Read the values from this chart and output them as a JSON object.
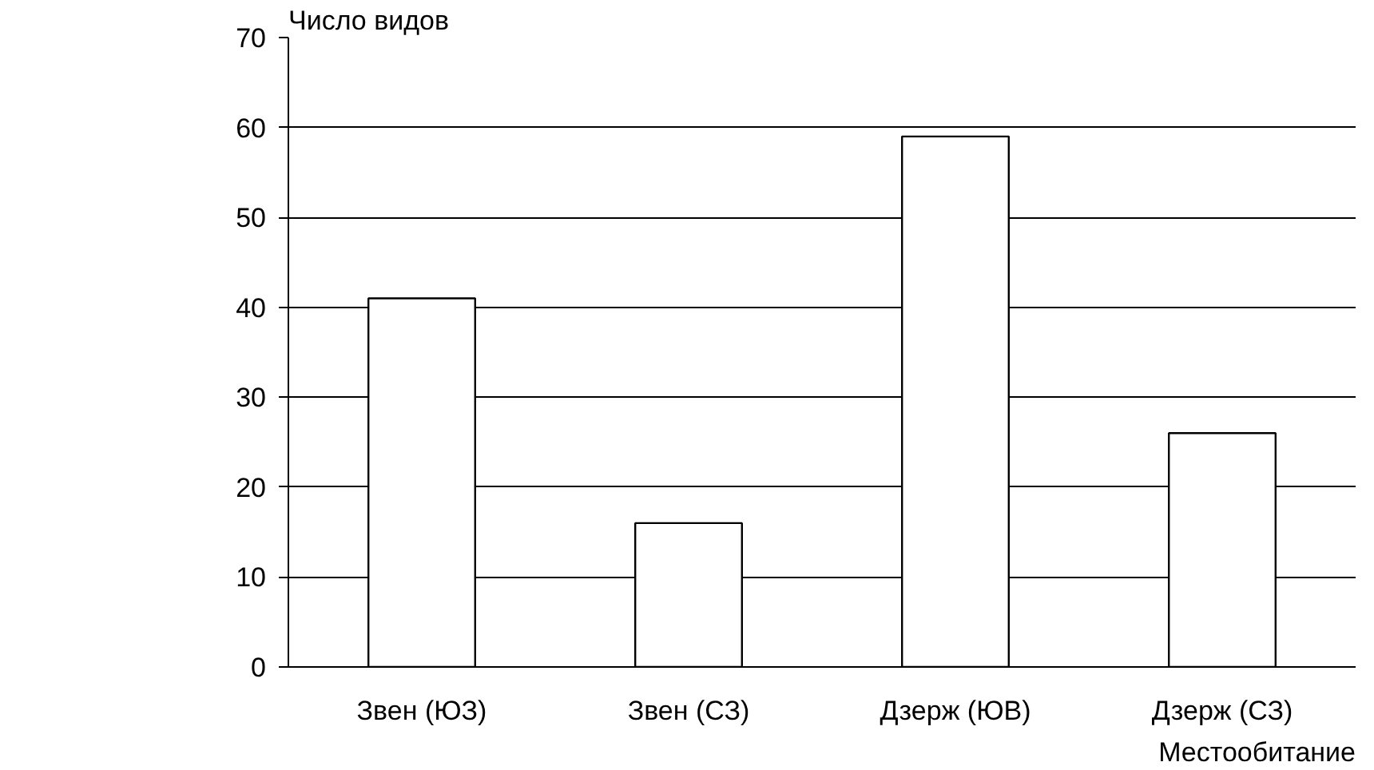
{
  "chart_data": {
    "type": "bar",
    "ylabel": "Число видов",
    "xlabel": "Местообитание",
    "categories": [
      "Звен (ЮЗ)",
      "Звен (СЗ)",
      "Дзерж (ЮВ)",
      "Дзерж (СЗ)"
    ],
    "values": [
      41,
      16,
      59,
      26
    ],
    "color": "#ffffff",
    "ylim": [
      0,
      70
    ],
    "yticks": [
      0,
      10,
      20,
      30,
      40,
      50,
      60,
      70
    ],
    "grid": "y"
  }
}
